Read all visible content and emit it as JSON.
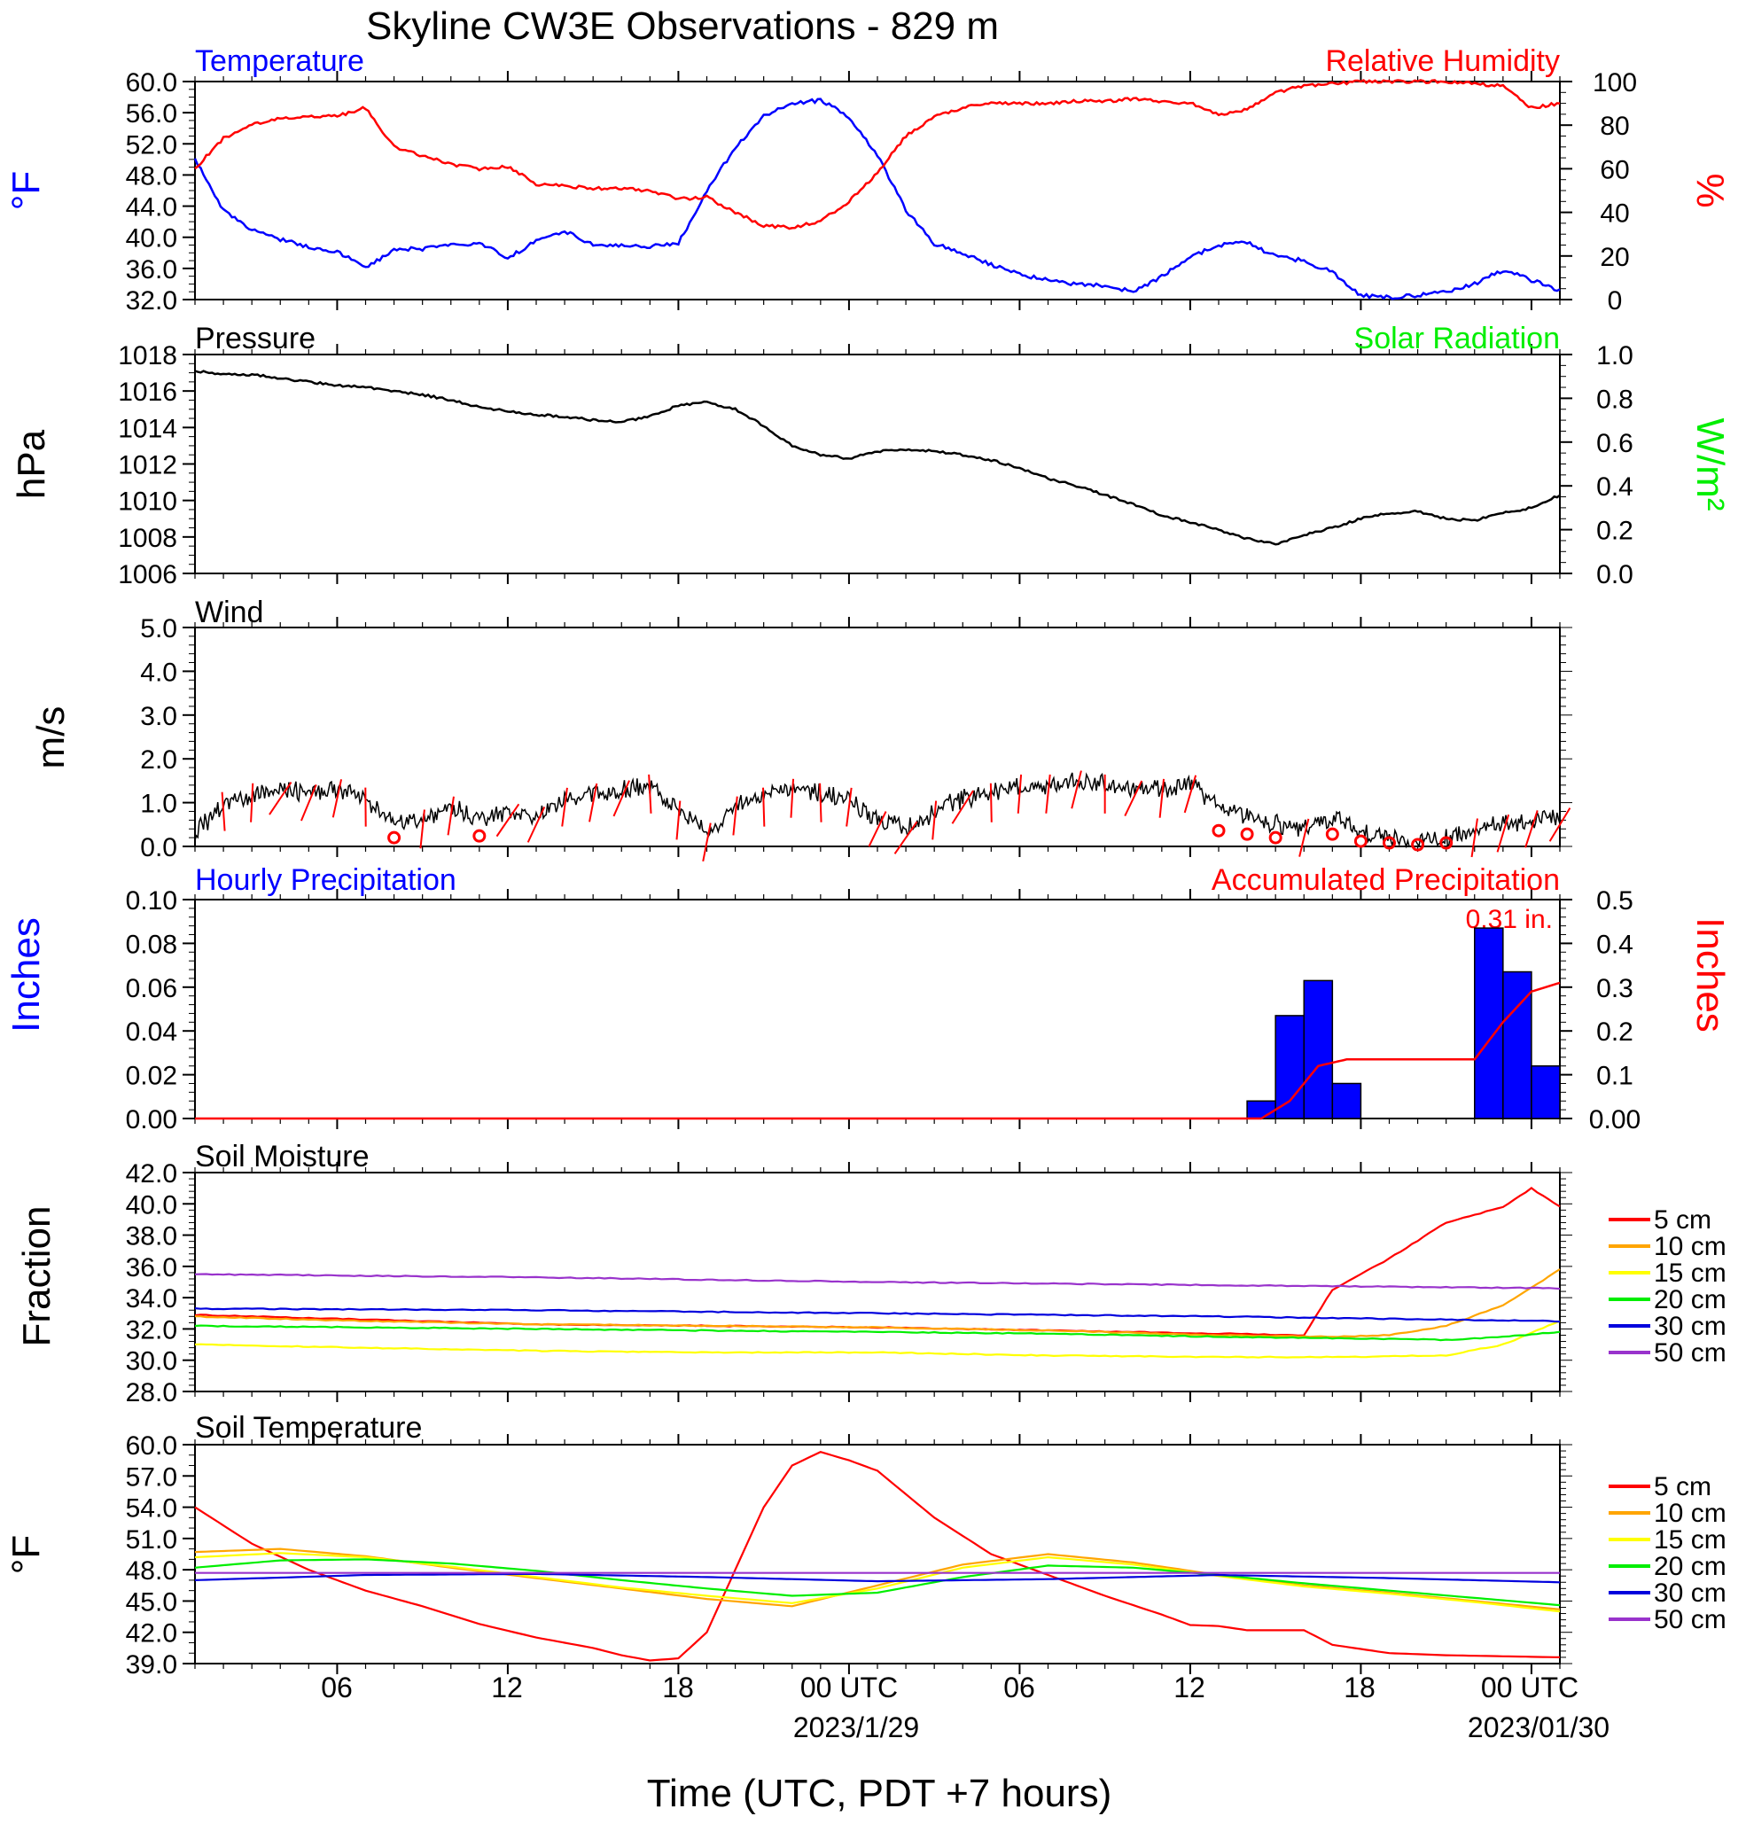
{
  "title": "Skyline CW3E Observations - 829 m",
  "x_axis": {
    "tick_labels": [
      "06",
      "12",
      "18",
      "00 UTC",
      "06",
      "12",
      "18",
      "00 UTC"
    ],
    "date_labels": [
      "2023/1/29",
      "2023/01/30"
    ],
    "xlabel": "Time (UTC, PDT +7 hours)"
  },
  "colors": {
    "temperature": "#0000ff",
    "humidity": "#ff0000",
    "solar": "#00ee00",
    "soil_5cm": "#ff0000",
    "soil_10cm": "#ffa500",
    "soil_15cm": "#ffff00",
    "soil_20cm": "#00ee00",
    "soil_30cm": "#0000dd",
    "soil_50cm": "#9933cc"
  },
  "panels": {
    "temp_rh": {
      "left_title": "Temperature",
      "right_title": "Relative Humidity",
      "left_unit": "°F",
      "right_unit": "%",
      "left_ticks": [
        "60.0",
        "56.0",
        "52.0",
        "48.0",
        "44.0",
        "40.0",
        "36.0",
        "32.0"
      ],
      "right_ticks": [
        "100",
        "80",
        "60",
        "40",
        "20",
        "0"
      ]
    },
    "pressure": {
      "left_title": "Pressure",
      "right_title": "Solar Radiation",
      "left_unit": "hPa",
      "right_unit": "W/m²",
      "left_ticks": [
        "1018",
        "1016",
        "1014",
        "1012",
        "1010",
        "1008",
        "1006"
      ],
      "right_ticks": [
        "1.0",
        "0.8",
        "0.6",
        "0.4",
        "0.2",
        "0.0"
      ]
    },
    "wind": {
      "left_title": "Wind",
      "left_unit": "m/s",
      "left_ticks": [
        "5.0",
        "4.0",
        "3.0",
        "2.0",
        "1.0",
        "0.0"
      ]
    },
    "precip": {
      "left_title": "Hourly Precipitation",
      "right_title": "Accumulated Precipitation",
      "left_unit": "Inches",
      "right_unit": "Inches",
      "total_label": "0.31 in.",
      "left_ticks": [
        "0.10",
        "0.08",
        "0.06",
        "0.04",
        "0.02",
        "0.00"
      ],
      "right_ticks": [
        "0.5",
        "0.4",
        "0.3",
        "0.2",
        "0.1",
        "0.00"
      ]
    },
    "soil_moisture": {
      "left_title": "Soil Moisture",
      "left_unit": "Fraction",
      "left_ticks": [
        "42.0",
        "40.0",
        "38.0",
        "36.0",
        "34.0",
        "32.0",
        "30.0",
        "28.0"
      ],
      "legend": [
        "5 cm",
        "10 cm",
        "15 cm",
        "20 cm",
        "30 cm",
        "50 cm"
      ]
    },
    "soil_temp": {
      "left_title": "Soil Temperature",
      "left_unit": "°F",
      "left_ticks": [
        "60.0",
        "57.0",
        "54.0",
        "51.0",
        "48.0",
        "45.0",
        "42.0",
        "39.0"
      ],
      "legend": [
        "5 cm",
        "10 cm",
        "15 cm",
        "20 cm",
        "30 cm",
        "50 cm"
      ]
    }
  },
  "chart_data": [
    {
      "type": "line",
      "title": "Temperature",
      "x_unit": "hours since 2023-01-28 01 UTC",
      "ylabel": "°F",
      "ylim": [
        32,
        60
      ],
      "series": [
        {
          "name": "Temperature",
          "axis": "left",
          "x": [
            0,
            1,
            2,
            3,
            4,
            5,
            6,
            7,
            8,
            9,
            10,
            11,
            12,
            13,
            14,
            15,
            16,
            17,
            18,
            19,
            20,
            21,
            22,
            23,
            24,
            25,
            26,
            27,
            28,
            29,
            30,
            31,
            32,
            33,
            34,
            35,
            36,
            37,
            38,
            39,
            40,
            41,
            42,
            43,
            44,
            45,
            46,
            47,
            48
          ],
          "y": [
            50,
            43.5,
            41,
            39.7,
            38.8,
            38.2,
            36,
            38.5,
            38.5,
            39,
            39.3,
            37.3,
            39.5,
            40.8,
            39,
            39,
            38.8,
            39.2,
            46,
            51.5,
            55.5,
            57.2,
            57.6,
            55.5,
            50.5,
            43.5,
            39.2,
            38,
            36.5,
            35.2,
            34.5,
            34,
            33.8,
            33,
            35,
            37.5,
            39,
            39.3,
            37.5,
            37,
            35.5,
            32.5,
            32.3,
            32.5,
            33,
            34,
            35.8,
            34.5,
            33.2
          ]
        }
      ],
      "right_axis": {
        "label": "%",
        "ylim": [
          0,
          100
        ]
      },
      "series_right": [
        {
          "name": "Relative Humidity",
          "x": [
            0,
            1,
            2,
            3,
            4,
            5,
            6,
            7,
            8,
            9,
            10,
            11,
            12,
            13,
            14,
            15,
            16,
            17,
            18,
            19,
            20,
            21,
            22,
            23,
            24,
            25,
            26,
            27,
            28,
            29,
            30,
            31,
            32,
            33,
            34,
            35,
            36,
            37,
            38,
            39,
            40,
            41,
            42,
            43,
            44,
            45,
            46,
            47,
            48
          ],
          "y": [
            60,
            74,
            80,
            83,
            84,
            84,
            88,
            70,
            66,
            62,
            60,
            61,
            53,
            52,
            51,
            51,
            50,
            46,
            47,
            40,
            34,
            33,
            36,
            45,
            58,
            75,
            84,
            88,
            90,
            90,
            90,
            91,
            91,
            92,
            91,
            90,
            85,
            87,
            95,
            98,
            99,
            100,
            100,
            100,
            100,
            99,
            98,
            88,
            90
          ]
        }
      ]
    },
    {
      "type": "line",
      "title": "Pressure",
      "x_unit": "hours since 2023-01-28 01 UTC",
      "ylabel": "hPa",
      "ylim": [
        1006,
        1018
      ],
      "series": [
        {
          "name": "Pressure",
          "x": [
            0,
            1,
            2,
            3,
            4,
            5,
            6,
            7,
            8,
            9,
            10,
            11,
            12,
            13,
            14,
            15,
            16,
            17,
            18,
            19,
            20,
            21,
            22,
            23,
            24,
            25,
            26,
            27,
            28,
            29,
            30,
            31,
            32,
            33,
            34,
            35,
            36,
            37,
            38,
            39,
            40,
            41,
            42,
            43,
            44,
            45,
            46,
            47,
            48
          ],
          "y": [
            1017.1,
            1016.9,
            1016.9,
            1016.7,
            1016.5,
            1016.3,
            1016.2,
            1016,
            1015.8,
            1015.5,
            1015.1,
            1014.9,
            1014.7,
            1014.6,
            1014.4,
            1014.3,
            1014.6,
            1015.2,
            1015.4,
            1015,
            1014.1,
            1013,
            1012.5,
            1012.3,
            1012.7,
            1012.8,
            1012.7,
            1012.5,
            1012.2,
            1011.8,
            1011.2,
            1010.8,
            1010.3,
            1009.8,
            1009.2,
            1008.8,
            1008.4,
            1007.9,
            1007.6,
            1008.1,
            1008.5,
            1009.0,
            1009.3,
            1009.4,
            1009.0,
            1008.9,
            1009.3,
            1009.6,
            1010.3
          ]
        }
      ],
      "right_axis": {
        "label": "W/m²",
        "ylim": [
          0,
          1
        ]
      }
    },
    {
      "type": "line",
      "title": "Wind",
      "x_unit": "hours since 2023-01-28 01 UTC",
      "ylabel": "m/s",
      "ylim": [
        0,
        5
      ],
      "series": [
        {
          "name": "Wind speed",
          "x": [
            0,
            1,
            2,
            3,
            4,
            5,
            6,
            7,
            8,
            9,
            10,
            11,
            12,
            13,
            14,
            15,
            16,
            17,
            18,
            19,
            20,
            21,
            22,
            23,
            24,
            25,
            26,
            27,
            28,
            29,
            30,
            31,
            32,
            33,
            34,
            35,
            36,
            37,
            38,
            39,
            40,
            41,
            42,
            43,
            44,
            45,
            46,
            47,
            48
          ],
          "y": [
            0.3,
            1.0,
            1.2,
            1.3,
            1.2,
            1.3,
            1.1,
            0.5,
            0.6,
            0.9,
            0.6,
            0.8,
            0.7,
            1.1,
            1.2,
            1.3,
            1.4,
            0.8,
            0.3,
            0.9,
            1.1,
            1.3,
            1.2,
            1.1,
            0.6,
            0.4,
            0.8,
            1.1,
            1.2,
            1.4,
            1.4,
            1.5,
            1.4,
            1.3,
            1.3,
            1.4,
            0.9,
            0.7,
            0.5,
            0.4,
            0.7,
            0.3,
            0.2,
            0.1,
            0.2,
            0.4,
            0.5,
            0.6,
            0.7
          ]
        },
        {
          "name": "Wind barbs (calm circles at hours)",
          "calm_x": [
            7,
            10,
            36,
            37,
            38,
            40,
            41,
            42,
            43,
            44
          ]
        }
      ]
    },
    {
      "type": "bar",
      "title": "Hourly Precipitation",
      "x_unit": "hours since 2023-01-28 01 UTC",
      "ylabel": "Inches",
      "ylim": [
        0,
        0.1
      ],
      "bars": {
        "x_start": [
          37,
          38,
          39,
          40,
          45,
          46,
          47
        ],
        "values": [
          0.008,
          0.047,
          0.063,
          0.016,
          0.087,
          0.067,
          0.024
        ]
      },
      "right_axis": {
        "label": "Inches",
        "ylim": [
          0,
          0.5
        ]
      },
      "series_right": [
        {
          "name": "Accumulated Precipitation",
          "x": [
            0,
            37.5,
            38.5,
            39.5,
            40.5,
            45,
            46,
            47,
            48
          ],
          "y": [
            0,
            0,
            0.04,
            0.12,
            0.135,
            0.135,
            0.22,
            0.29,
            0.31
          ]
        }
      ]
    },
    {
      "type": "line",
      "title": "Soil Moisture",
      "x_unit": "hours since 2023-01-28 01 UTC",
      "ylabel": "Fraction",
      "ylim": [
        28,
        42
      ],
      "series": [
        {
          "name": "5 cm",
          "x": [
            0,
            6,
            12,
            18,
            24,
            30,
            36,
            39,
            40,
            42,
            44,
            46,
            47,
            48
          ],
          "y": [
            32.9,
            32.6,
            32.3,
            32.2,
            32.1,
            31.9,
            31.7,
            31.6,
            34.5,
            36.5,
            38.8,
            39.8,
            41,
            39.8
          ]
        },
        {
          "name": "10 cm",
          "x": [
            0,
            6,
            12,
            18,
            24,
            30,
            36,
            40,
            42,
            44,
            46,
            48
          ],
          "y": [
            32.8,
            32.5,
            32.3,
            32.2,
            32.1,
            31.9,
            31.6,
            31.5,
            31.6,
            32.2,
            33.5,
            35.8
          ]
        },
        {
          "name": "15 cm",
          "x": [
            0,
            6,
            12,
            18,
            24,
            30,
            36,
            40,
            44,
            46,
            48
          ],
          "y": [
            31.0,
            30.8,
            30.6,
            30.5,
            30.5,
            30.3,
            30.2,
            30.2,
            30.3,
            31.0,
            32.5
          ]
        },
        {
          "name": "20 cm",
          "x": [
            0,
            6,
            12,
            18,
            24,
            30,
            36,
            40,
            44,
            46,
            48
          ],
          "y": [
            32.2,
            32.1,
            32.0,
            31.9,
            31.8,
            31.7,
            31.5,
            31.4,
            31.3,
            31.5,
            31.8
          ]
        },
        {
          "name": "30 cm",
          "x": [
            0,
            12,
            24,
            36,
            48
          ],
          "y": [
            33.3,
            33.2,
            33.0,
            32.8,
            32.5
          ]
        },
        {
          "name": "50 cm",
          "x": [
            0,
            12,
            24,
            36,
            48
          ],
          "y": [
            35.5,
            35.3,
            35.0,
            34.8,
            34.6
          ]
        }
      ]
    },
    {
      "type": "line",
      "title": "Soil Temperature",
      "x_unit": "hours since 2023-01-28 01 UTC",
      "ylabel": "°F",
      "ylim": [
        39,
        60
      ],
      "series": [
        {
          "name": "5 cm",
          "x": [
            0,
            2,
            4,
            6,
            8,
            10,
            12,
            14,
            15,
            16,
            17,
            18,
            19,
            20,
            21,
            22,
            23,
            24,
            26,
            28,
            30,
            32,
            34,
            35,
            36,
            37,
            38,
            39,
            40,
            42,
            44,
            46,
            48
          ],
          "y": [
            54,
            50.5,
            48,
            46,
            44.5,
            42.8,
            41.5,
            40.5,
            39.8,
            39.3,
            39.5,
            42,
            48,
            54,
            58,
            59.3,
            58.5,
            57.5,
            53,
            49.5,
            47.5,
            45.5,
            43.7,
            42.7,
            42.6,
            42.2,
            42.2,
            42.2,
            40.8,
            40.0,
            39.8,
            39.7,
            39.6
          ]
        },
        {
          "name": "10 cm",
          "x": [
            0,
            3,
            6,
            9,
            12,
            15,
            18,
            21,
            24,
            27,
            30,
            33,
            36,
            39,
            42,
            45,
            48
          ],
          "y": [
            49.7,
            50,
            49.3,
            48.2,
            47.2,
            46.2,
            45.2,
            44.5,
            46.5,
            48.5,
            49.5,
            48.7,
            47.5,
            46.5,
            45.8,
            45.0,
            44.2
          ]
        },
        {
          "name": "15 cm",
          "x": [
            0,
            3,
            6,
            9,
            12,
            15,
            18,
            21,
            24,
            27,
            30,
            33,
            36,
            39,
            42,
            45,
            48
          ],
          "y": [
            49.2,
            49.6,
            49.2,
            48.3,
            47.3,
            46.3,
            45.5,
            44.8,
            46.2,
            48.2,
            49.2,
            48.5,
            47.4,
            46.4,
            45.7,
            44.9,
            44.0
          ]
        },
        {
          "name": "20 cm",
          "x": [
            0,
            3,
            6,
            9,
            12,
            15,
            18,
            21,
            24,
            27,
            30,
            33,
            36,
            39,
            42,
            45,
            48
          ],
          "y": [
            48.2,
            48.9,
            49,
            48.6,
            47.9,
            47.0,
            46.2,
            45.5,
            45.8,
            47.3,
            48.4,
            48.2,
            47.5,
            46.7,
            46.0,
            45.3,
            44.6
          ]
        },
        {
          "name": "30 cm",
          "x": [
            0,
            6,
            12,
            18,
            24,
            30,
            36,
            42,
            48
          ],
          "y": [
            47,
            47.5,
            47.6,
            47.3,
            46.9,
            47.1,
            47.5,
            47.2,
            46.8
          ]
        },
        {
          "name": "50 cm",
          "x": [
            0,
            48
          ],
          "y": [
            47.7,
            47.7
          ]
        }
      ]
    }
  ]
}
